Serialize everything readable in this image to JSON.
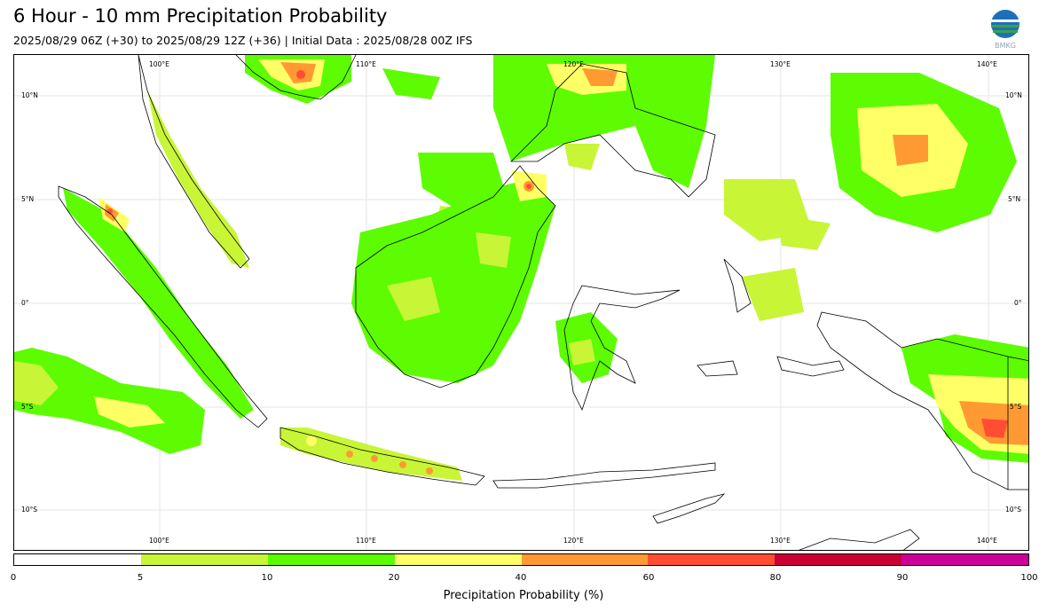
{
  "header": {
    "title": "6 Hour - 10 mm Precipitation Probability",
    "subtitle": "2025/08/29 06Z (+30) to 2025/08/29 12Z (+36) | Initial Data : 2025/08/28 00Z IFS"
  },
  "logo": {
    "icon": "bmkg-logo-icon",
    "text": "BMKG"
  },
  "map": {
    "region": "Indonesia",
    "projection": "equirectangular",
    "lon_range": [
      93,
      142
    ],
    "lat_range": [
      -12,
      12
    ],
    "lon_ticks": [
      "100°E",
      "110°E",
      "120°E",
      "130°E",
      "140°E"
    ],
    "lat_ticks": [
      "10°N",
      "5°N",
      "0°",
      "5°S",
      "10°S"
    ],
    "grid": true
  },
  "colorbar": {
    "label": "Precipitation Probability (%)",
    "ticks": [
      "0",
      "5",
      "10",
      "20",
      "40",
      "60",
      "80",
      "90",
      "100"
    ],
    "colors": [
      "#ffffff",
      "#c8f536",
      "#5efc03",
      "#ffff66",
      "#ff9a33",
      "#ff4d33",
      "#cc0033",
      "#cc0099"
    ]
  }
}
